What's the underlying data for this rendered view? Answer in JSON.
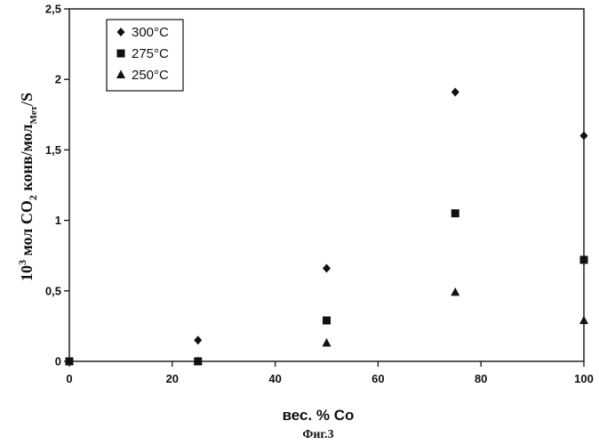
{
  "chart_data": {
    "type": "scatter",
    "title": "",
    "xlabel": "вес. % Co",
    "ylabel": {
      "prefix": "10",
      "prefix_sup": "3",
      "part1": " мол CO",
      "part1_sub": "2",
      "part2": " конв/мол",
      "part2_sub": "Мет",
      "part3": "/S"
    },
    "caption": "Фиг.3",
    "xlim": [
      0,
      100
    ],
    "ylim": [
      0,
      2.5
    ],
    "xticks": [
      "0",
      "20",
      "40",
      "60",
      "80",
      "100"
    ],
    "yticks": [
      "0",
      "0,5",
      "1",
      "1,5",
      "2",
      "2,5"
    ],
    "legend_position": "top-left",
    "grid": false,
    "series": [
      {
        "name": "300°C",
        "marker": "diamond",
        "x": [
          0,
          25,
          50,
          75,
          100
        ],
        "y": [
          0,
          0.15,
          0.66,
          1.91,
          1.6
        ]
      },
      {
        "name": "275°C",
        "marker": "square",
        "x": [
          0,
          25,
          50,
          75,
          100
        ],
        "y": [
          0,
          0.0,
          0.29,
          1.05,
          0.72
        ]
      },
      {
        "name": "250°C",
        "marker": "triangle",
        "x": [
          0,
          25,
          50,
          75,
          100
        ],
        "y": [
          0,
          0.0,
          0.13,
          0.49,
          0.29
        ]
      }
    ]
  }
}
